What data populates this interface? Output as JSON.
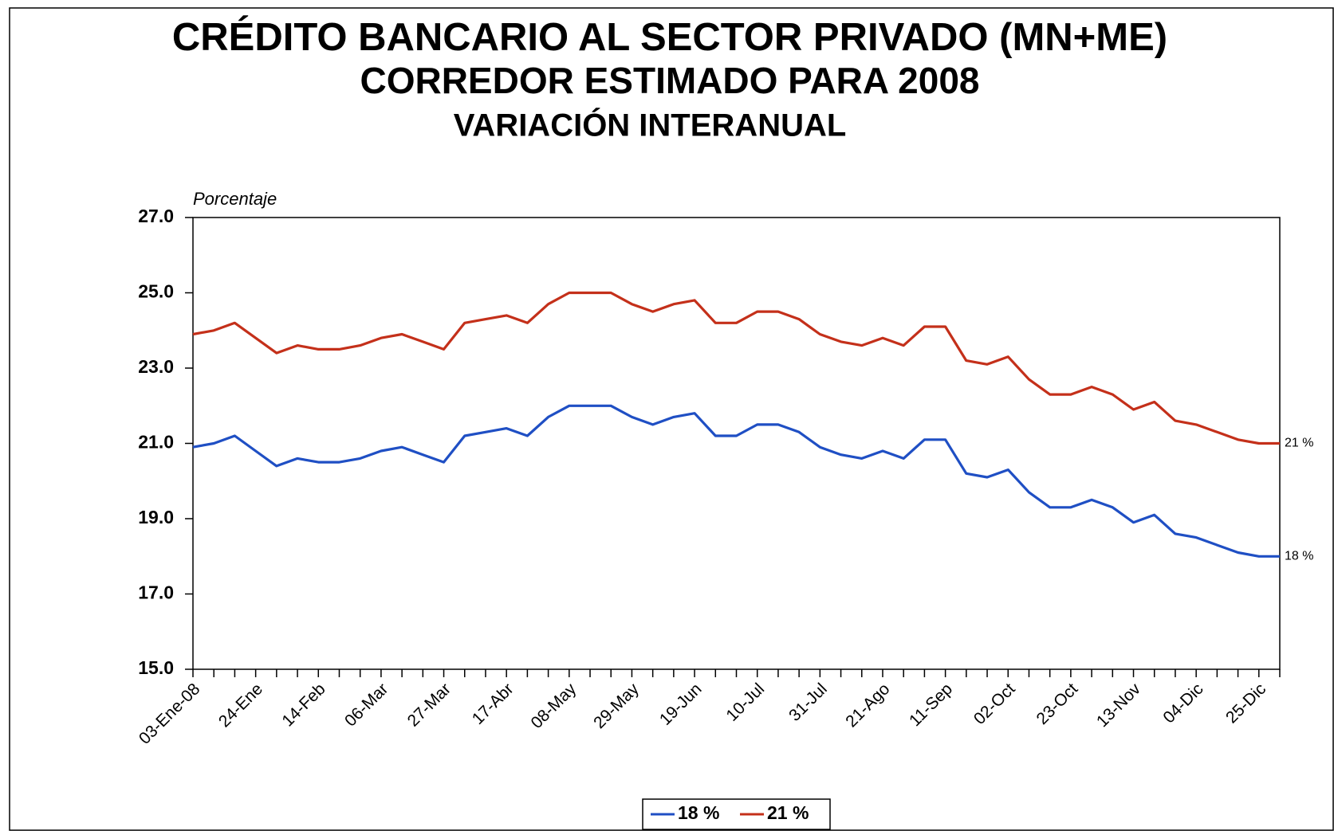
{
  "chart_data": {
    "type": "line",
    "title": "CRÉDITO BANCARIO AL SECTOR PRIVADO (MN+ME)",
    "subtitle": "CORREDOR ESTIMADO PARA 2008",
    "subtitle2": "VARIACIÓN INTERANUAL",
    "y_axis_label": "Porcentaje",
    "categories": [
      "03-Ene-08",
      null,
      null,
      "24-Ene",
      null,
      null,
      "14-Feb",
      null,
      null,
      "06-Mar",
      null,
      null,
      "27-Mar",
      null,
      null,
      "17-Abr",
      null,
      null,
      "08-May",
      null,
      null,
      "29-May",
      null,
      null,
      "19-Jun",
      null,
      null,
      "10-Jul",
      null,
      null,
      "31-Jul",
      null,
      null,
      "21-Ago",
      null,
      null,
      "11-Sep",
      null,
      null,
      "02-Oct",
      null,
      null,
      "23-Oct",
      null,
      null,
      "13-Nov",
      null,
      null,
      "04-Dic",
      null,
      null,
      "25-Dic",
      null
    ],
    "series": [
      {
        "name": "18 %",
        "color": "#1f4fc4",
        "values": [
          20.9,
          21.0,
          21.2,
          20.8,
          20.4,
          20.6,
          20.5,
          20.5,
          20.6,
          20.8,
          20.9,
          20.7,
          20.5,
          21.2,
          21.3,
          21.4,
          21.2,
          21.7,
          22.0,
          22.0,
          22.0,
          21.7,
          21.5,
          21.7,
          21.8,
          21.2,
          21.2,
          21.5,
          21.5,
          21.3,
          20.9,
          20.7,
          20.6,
          20.8,
          20.6,
          21.1,
          21.1,
          20.2,
          20.1,
          20.3,
          19.7,
          19.3,
          19.3,
          19.5,
          19.3,
          18.9,
          19.1,
          18.6,
          18.5,
          18.3,
          18.1,
          18.0,
          18.0
        ]
      },
      {
        "name": "21 %",
        "color": "#c4301a",
        "values": [
          23.9,
          24.0,
          24.2,
          23.8,
          23.4,
          23.6,
          23.5,
          23.5,
          23.6,
          23.8,
          23.9,
          23.7,
          23.5,
          24.2,
          24.3,
          24.4,
          24.2,
          24.7,
          25.0,
          25.0,
          25.0,
          24.7,
          24.5,
          24.7,
          24.8,
          24.2,
          24.2,
          24.5,
          24.5,
          24.3,
          23.9,
          23.7,
          23.6,
          23.8,
          23.6,
          24.1,
          24.1,
          23.2,
          23.1,
          23.3,
          22.7,
          22.3,
          22.3,
          22.5,
          22.3,
          21.9,
          22.1,
          21.6,
          21.5,
          21.3,
          21.1,
          21.0,
          21.0
        ]
      }
    ],
    "ylim": [
      15,
      27
    ],
    "yticks": [
      {
        "value": 15,
        "label": "15.0"
      },
      {
        "value": 17,
        "label": "17.0"
      },
      {
        "value": 19,
        "label": "19.0"
      },
      {
        "value": 21,
        "label": "21.0"
      },
      {
        "value": 23,
        "label": "23.0"
      },
      {
        "value": 25,
        "label": "25.0"
      },
      {
        "value": 27,
        "label": "27.0"
      }
    ],
    "grid": false,
    "legend": "bottom"
  }
}
